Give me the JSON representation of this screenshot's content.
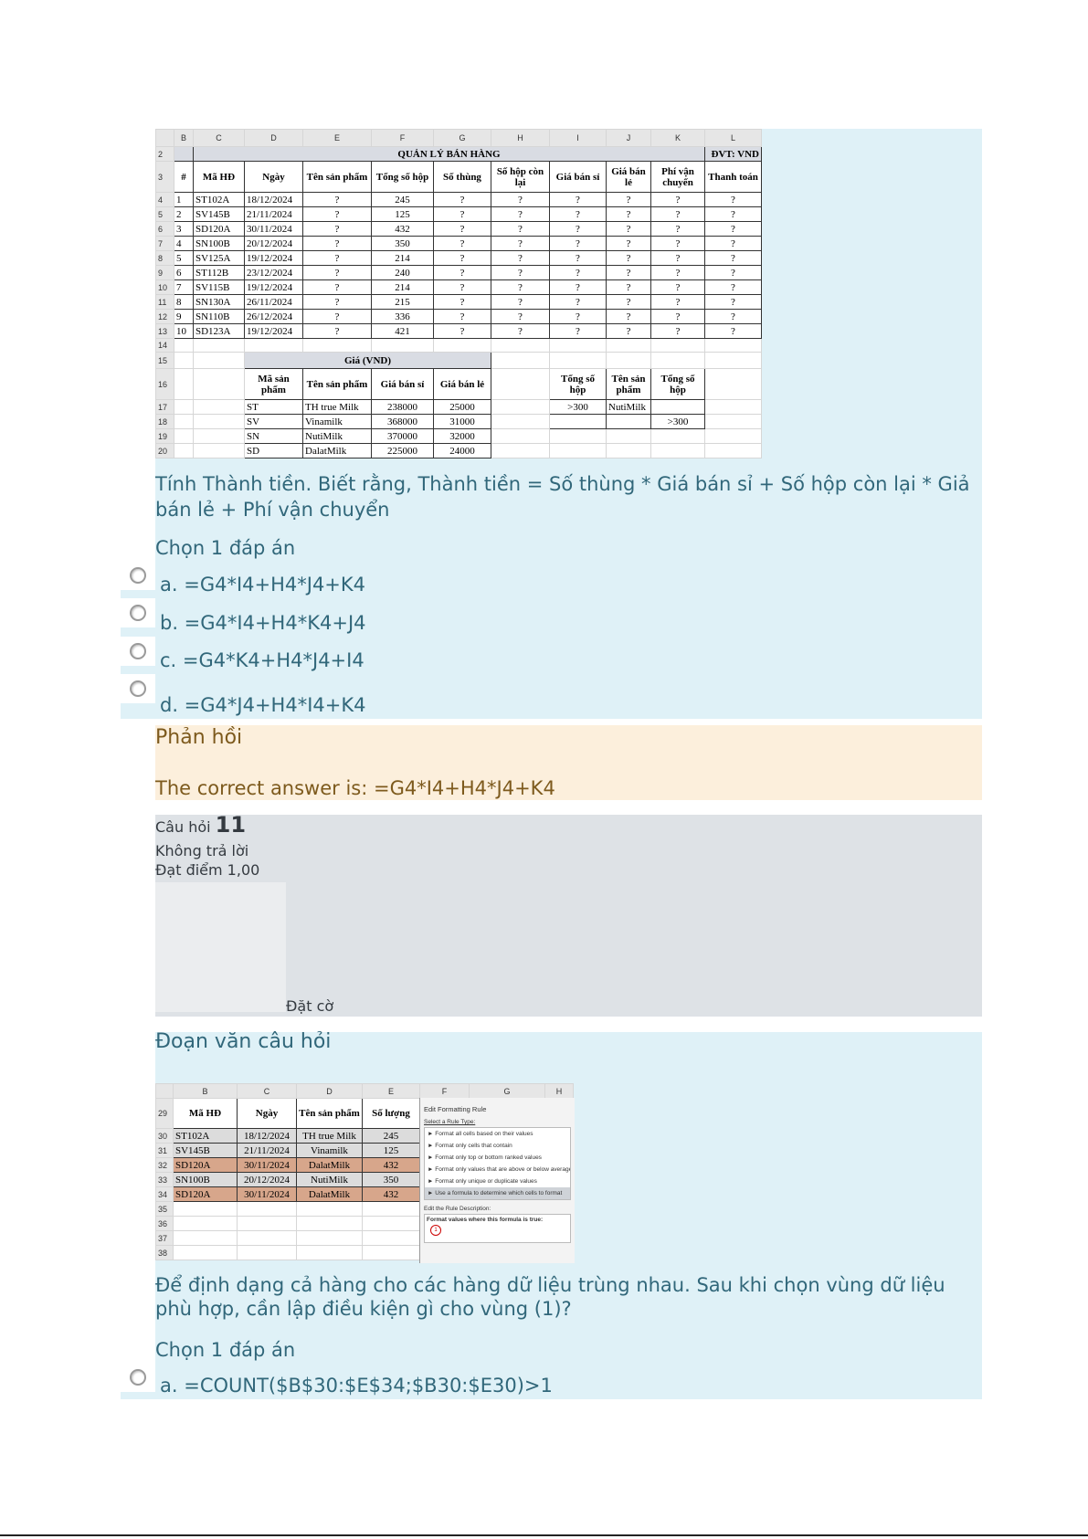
{
  "question10": {
    "sheet": {
      "col_letters": [
        "B",
        "C",
        "D",
        "E",
        "F",
        "G",
        "H",
        "I",
        "J",
        "K",
        "L"
      ],
      "row_numbers": [
        2,
        3,
        4,
        5,
        6,
        7,
        8,
        9,
        10,
        11,
        12,
        13,
        14,
        15,
        16,
        17,
        18,
        19,
        20
      ],
      "title": "QUẢN LÝ BÁN HÀNG",
      "unit": "ĐVT: VND",
      "headers": [
        "#",
        "Mã HĐ",
        "Ngày",
        "Tên sản phẩm",
        "Tổng số hộp",
        "Số thùng",
        "Số hộp còn lại",
        "Giá bán sỉ",
        "Giá bán lẻ",
        "Phí vận chuyển",
        "Thanh toán"
      ],
      "rows": [
        [
          1,
          "ST102A",
          "18/12/2024",
          "?",
          245,
          "?",
          "?",
          "?",
          "?",
          "?",
          "?"
        ],
        [
          2,
          "SV145B",
          "21/11/2024",
          "?",
          125,
          "?",
          "?",
          "?",
          "?",
          "?",
          "?"
        ],
        [
          3,
          "SD120A",
          "30/11/2024",
          "?",
          432,
          "?",
          "?",
          "?",
          "?",
          "?",
          "?"
        ],
        [
          4,
          "SN100B",
          "20/12/2024",
          "?",
          350,
          "?",
          "?",
          "?",
          "?",
          "?",
          "?"
        ],
        [
          5,
          "SV125A",
          "19/12/2024",
          "?",
          214,
          "?",
          "?",
          "?",
          "?",
          "?",
          "?"
        ],
        [
          6,
          "ST112B",
          "23/12/2024",
          "?",
          240,
          "?",
          "?",
          "?",
          "?",
          "?",
          "?"
        ],
        [
          7,
          "SV115B",
          "19/12/2024",
          "?",
          214,
          "?",
          "?",
          "?",
          "?",
          "?",
          "?"
        ],
        [
          8,
          "SN130A",
          "26/11/2024",
          "?",
          215,
          "?",
          "?",
          "?",
          "?",
          "?",
          "?"
        ],
        [
          9,
          "SN110B",
          "26/12/2024",
          "?",
          336,
          "?",
          "?",
          "?",
          "?",
          "?",
          "?"
        ],
        [
          10,
          "SD123A",
          "19/12/2024",
          "?",
          421,
          "?",
          "?",
          "?",
          "?",
          "?",
          "?"
        ]
      ],
      "price_table": {
        "title": "Giá (VND)",
        "headers": [
          "Mã sản phẩm",
          "Tên sản phẩm",
          "Giá bán sỉ",
          "Giá bán lẻ"
        ],
        "rows": [
          [
            "ST",
            "TH true Milk",
            238000,
            25000
          ],
          [
            "SV",
            "Vinamilk",
            368000,
            31000
          ],
          [
            "SN",
            "NutiMilk",
            370000,
            32000
          ],
          [
            "SD",
            "DalatMilk",
            225000,
            24000
          ]
        ]
      },
      "criteria": {
        "headers": [
          "Tổng số hộp",
          "Tên sản phẩm",
          "Tổng số hộp"
        ],
        "rows": [
          [
            ">300",
            "NutiMilk",
            null
          ],
          [
            null,
            null,
            ">300"
          ]
        ]
      }
    },
    "text": "Tính Thành tiền. Biết rằng, Thành tiền = Số thùng * Giá bán sỉ + Số hộp còn lại * Giả bán lẻ + Phí vận chuyển",
    "prompt": "Chọn 1 đáp án",
    "options": [
      "a. =G4*I4+H4*J4+K4",
      "b. =G4*I4+H4*K4+J4",
      "c. =G4*K4+H4*J4+I4",
      "d. =G4*J4+H4*I4+K4"
    ],
    "feedback": {
      "title": "Phản hồi",
      "answer": "The correct answer is: =G4*I4+H4*J4+K4"
    }
  },
  "question11": {
    "label": "Câu hỏi",
    "number": "11",
    "status": "Không trả lời",
    "grade": "Đạt điểm 1,00",
    "flag": "Đặt cờ",
    "section": "Đoạn văn câu hỏi",
    "sheet": {
      "col_letters": [
        "B",
        "C",
        "D",
        "E",
        "F",
        "G",
        "H"
      ],
      "row_numbers": [
        29,
        30,
        31,
        32,
        33,
        34,
        35,
        36,
        37,
        38
      ],
      "headers": [
        "Mã HĐ",
        "Ngày",
        "Tên sản phẩm",
        "Số lượng"
      ],
      "rows": [
        [
          "ST102A",
          "18/12/2024",
          "TH true Milk",
          245
        ],
        [
          "SV145B",
          "21/11/2024",
          "Vinamilk",
          125
        ],
        [
          "SD120A",
          "30/11/2024",
          "DalatMilk",
          432
        ],
        [
          "SN100B",
          "20/12/2024",
          "NutiMilk",
          350
        ],
        [
          "SD120A",
          "30/11/2024",
          "DalatMilk",
          432
        ]
      ]
    },
    "dialog": {
      "title": "Edit Formatting Rule",
      "select_label": "Select a Rule Type:",
      "rule_types": [
        "► Format all cells based on their values",
        "► Format only cells that contain",
        "► Format only top or bottom ranked values",
        "► Format only values that are above or below average",
        "► Format only unique or duplicate values",
        "► Use a formula to determine which cells to format"
      ],
      "edit_label": "Edit the Rule Description:",
      "formula_label": "Format values where this formula is true:",
      "marker": "1"
    },
    "text": "Để định dạng cả hàng cho các hàng dữ liệu trùng nhau. Sau khi chọn vùng dữ liệu phù hợp, cần lập điều kiện gì cho vùng (1)?",
    "prompt": "Chọn 1 đáp án",
    "options": [
      "a. =COUNT($B$30:$E$34;$B30:$E30)>1"
    ]
  }
}
